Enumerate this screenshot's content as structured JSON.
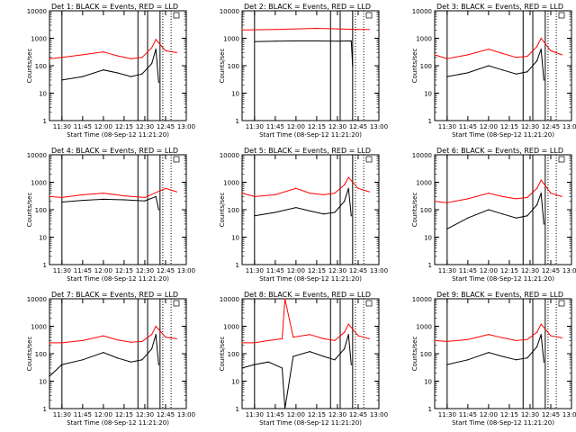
{
  "common": {
    "xlabel": "Start Time (08-Sep-12 11:21:20)",
    "ylabel": "Counts/sec",
    "x_ticks": [
      "11:30",
      "11:45",
      "12:00",
      "12:15",
      "12:30",
      "12:45",
      "13:00"
    ],
    "y_ticks": [
      "1",
      "10",
      "100",
      "1000",
      "10000"
    ],
    "colors": {
      "events": "#000000",
      "lld": "#ff0000",
      "solid_marker": "#000000"
    }
  },
  "chart_data": [
    {
      "type": "line",
      "title": "Det 1: BLACK = Events, RED = LLD",
      "xlim": [
        "11:21",
        "13:00"
      ],
      "ylim": [
        1,
        10000
      ],
      "yscale": "log",
      "series": [
        {
          "name": "Events",
          "x": [
            "11:30",
            "11:45",
            "12:00",
            "12:10",
            "12:20",
            "12:28",
            "12:35",
            "12:38",
            "12:40"
          ],
          "values": [
            30,
            40,
            70,
            55,
            40,
            50,
            120,
            400,
            25
          ]
        },
        {
          "name": "LLD",
          "x": [
            "11:21",
            "11:30",
            "11:45",
            "12:00",
            "12:10",
            "12:20",
            "12:28",
            "12:35",
            "12:38",
            "12:45",
            "12:53"
          ],
          "values": [
            180,
            200,
            250,
            320,
            230,
            180,
            200,
            450,
            900,
            350,
            300
          ]
        }
      ]
    },
    {
      "type": "line",
      "title": "Det 2: BLACK = Events, RED = LLD",
      "xlim": [
        "11:21",
        "13:00"
      ],
      "ylim": [
        1,
        10000
      ],
      "yscale": "log",
      "series": [
        {
          "name": "Events",
          "x": [
            "11:30",
            "11:45",
            "12:00",
            "12:15",
            "12:30",
            "12:40",
            "12:41"
          ],
          "values": [
            750,
            780,
            800,
            800,
            780,
            800,
            100
          ]
        },
        {
          "name": "LLD",
          "x": [
            "11:21",
            "11:45",
            "12:00",
            "12:15",
            "12:30",
            "12:45",
            "12:53"
          ],
          "values": [
            2000,
            2100,
            2200,
            2300,
            2200,
            2100,
            2100
          ]
        }
      ]
    },
    {
      "type": "line",
      "title": "Det 3: BLACK = Events, RED = LLD",
      "xlim": [
        "11:21",
        "13:00"
      ],
      "ylim": [
        1,
        10000
      ],
      "yscale": "log",
      "series": [
        {
          "name": "Events",
          "x": [
            "11:30",
            "11:45",
            "12:00",
            "12:10",
            "12:20",
            "12:28",
            "12:35",
            "12:38",
            "12:40"
          ],
          "values": [
            40,
            55,
            100,
            70,
            50,
            60,
            150,
            400,
            30
          ]
        },
        {
          "name": "LLD",
          "x": [
            "11:21",
            "11:30",
            "11:45",
            "12:00",
            "12:10",
            "12:20",
            "12:28",
            "12:35",
            "12:38",
            "12:45",
            "12:53"
          ],
          "values": [
            250,
            180,
            250,
            400,
            280,
            200,
            220,
            500,
            1000,
            350,
            250
          ]
        }
      ]
    },
    {
      "type": "line",
      "title": "Det 4: BLACK = Events, RED = LLD",
      "xlim": [
        "11:21",
        "13:00"
      ],
      "ylim": [
        1,
        10000
      ],
      "yscale": "log",
      "series": [
        {
          "name": "Events",
          "x": [
            "11:30",
            "11:45",
            "12:00",
            "12:15",
            "12:30",
            "12:38",
            "12:40"
          ],
          "values": [
            190,
            220,
            240,
            230,
            210,
            300,
            100
          ]
        },
        {
          "name": "LLD",
          "x": [
            "11:21",
            "11:30",
            "11:45",
            "12:00",
            "12:15",
            "12:30",
            "12:45",
            "12:53"
          ],
          "values": [
            300,
            280,
            350,
            400,
            320,
            280,
            600,
            450
          ]
        }
      ]
    },
    {
      "type": "line",
      "title": "Det 5: BLACK = Events, RED = LLD",
      "xlim": [
        "11:21",
        "13:00"
      ],
      "ylim": [
        1,
        10000
      ],
      "yscale": "log",
      "series": [
        {
          "name": "Events",
          "x": [
            "11:30",
            "11:45",
            "12:00",
            "12:10",
            "12:20",
            "12:28",
            "12:35",
            "12:38",
            "12:40"
          ],
          "values": [
            60,
            80,
            120,
            90,
            70,
            80,
            200,
            600,
            60
          ]
        },
        {
          "name": "LLD",
          "x": [
            "11:21",
            "11:30",
            "11:45",
            "12:00",
            "12:10",
            "12:20",
            "12:28",
            "12:35",
            "12:38",
            "12:45",
            "12:53"
          ],
          "values": [
            400,
            300,
            350,
            600,
            400,
            350,
            400,
            800,
            1500,
            600,
            450
          ]
        }
      ]
    },
    {
      "type": "line",
      "title": "Det 6: BLACK = Events, RED = LLD",
      "xlim": [
        "11:21",
        "13:00"
      ],
      "ylim": [
        1,
        10000
      ],
      "yscale": "log",
      "series": [
        {
          "name": "Events",
          "x": [
            "11:30",
            "11:45",
            "12:00",
            "12:10",
            "12:20",
            "12:28",
            "12:35",
            "12:38",
            "12:40"
          ],
          "values": [
            20,
            50,
            100,
            70,
            50,
            60,
            150,
            400,
            30
          ]
        },
        {
          "name": "LLD",
          "x": [
            "11:21",
            "11:30",
            "11:45",
            "12:00",
            "12:10",
            "12:20",
            "12:28",
            "12:35",
            "12:38",
            "12:45",
            "12:53"
          ],
          "values": [
            200,
            180,
            250,
            400,
            300,
            250,
            280,
            600,
            1200,
            400,
            300
          ]
        }
      ]
    },
    {
      "type": "line",
      "title": "Det 7: BLACK = Events, RED = LLD",
      "xlim": [
        "11:21",
        "13:00"
      ],
      "ylim": [
        1,
        10000
      ],
      "yscale": "log",
      "series": [
        {
          "name": "Events",
          "x": [
            "11:21",
            "11:30",
            "11:45",
            "12:00",
            "12:10",
            "12:20",
            "12:28",
            "12:35",
            "12:38",
            "12:40"
          ],
          "values": [
            15,
            40,
            60,
            110,
            70,
            50,
            60,
            150,
            500,
            40
          ]
        },
        {
          "name": "LLD",
          "x": [
            "11:21",
            "11:30",
            "11:45",
            "12:00",
            "12:10",
            "12:20",
            "12:28",
            "12:35",
            "12:38",
            "12:45",
            "12:53"
          ],
          "values": [
            250,
            250,
            300,
            450,
            320,
            260,
            280,
            500,
            1000,
            400,
            350
          ]
        }
      ]
    },
    {
      "type": "line",
      "title": "Det 8: BLACK = Events, RED = LLD",
      "xlim": [
        "11:21",
        "13:00"
      ],
      "ylim": [
        1,
        10000
      ],
      "yscale": "log",
      "series": [
        {
          "name": "Events",
          "x": [
            "11:21",
            "11:30",
            "11:40",
            "11:50",
            "11:52",
            "11:58",
            "12:10",
            "12:20",
            "12:28",
            "12:35",
            "12:38",
            "12:40"
          ],
          "values": [
            30,
            40,
            50,
            30,
            1,
            80,
            120,
            80,
            60,
            150,
            500,
            40
          ]
        },
        {
          "name": "LLD",
          "x": [
            "11:21",
            "11:30",
            "11:40",
            "11:50",
            "11:52",
            "11:58",
            "12:10",
            "12:20",
            "12:28",
            "12:35",
            "12:38",
            "12:45",
            "12:53"
          ],
          "values": [
            250,
            250,
            300,
            350,
            10000,
            400,
            500,
            350,
            300,
            600,
            1200,
            450,
            350
          ]
        }
      ]
    },
    {
      "type": "line",
      "title": "Det 9: BLACK = Events, RED = LLD",
      "xlim": [
        "11:21",
        "13:00"
      ],
      "ylim": [
        1,
        10000
      ],
      "yscale": "log",
      "series": [
        {
          "name": "Events",
          "x": [
            "11:30",
            "11:45",
            "12:00",
            "12:10",
            "12:20",
            "12:28",
            "12:35",
            "12:38",
            "12:40"
          ],
          "values": [
            40,
            60,
            110,
            80,
            60,
            70,
            180,
            500,
            50
          ]
        },
        {
          "name": "LLD",
          "x": [
            "11:21",
            "11:30",
            "11:45",
            "12:00",
            "12:10",
            "12:20",
            "12:28",
            "12:35",
            "12:38",
            "12:45",
            "12:53"
          ],
          "values": [
            300,
            280,
            330,
            500,
            380,
            300,
            330,
            600,
            1200,
            450,
            380
          ]
        }
      ]
    }
  ]
}
